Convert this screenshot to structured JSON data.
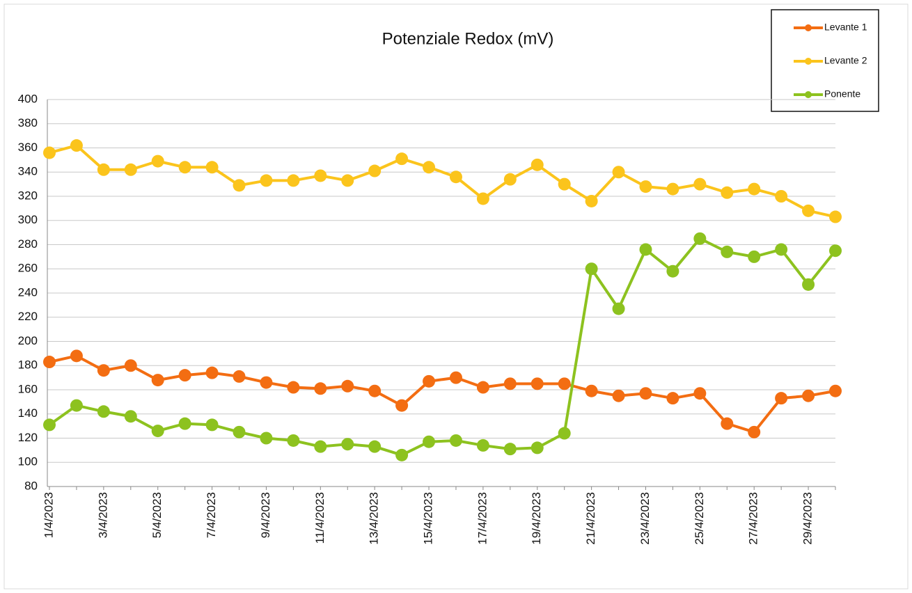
{
  "chart_data": {
    "type": "line",
    "title": "Potenziale Redox  (mV)",
    "categories": [
      "1/4/2023",
      null,
      "3/4/2023",
      null,
      "5/4/2023",
      null,
      "7/4/2023",
      null,
      "9/4/2023",
      null,
      "11/4/2023",
      null,
      "13/4/2023",
      null,
      "15/4/2023",
      null,
      "17/4/2023",
      null,
      "19/4/2023",
      null,
      "21/4/2023",
      null,
      "23/4/2023",
      null,
      "25/4/2023",
      null,
      "27/4/2023",
      null,
      "29/4/2023",
      null
    ],
    "series": [
      {
        "name": "Levante 1",
        "color": "#f36d12",
        "values": [
          183,
          188,
          176,
          180,
          168,
          172,
          174,
          171,
          166,
          162,
          161,
          163,
          159,
          147,
          167,
          170,
          162,
          165,
          165,
          165,
          159,
          155,
          157,
          153,
          157,
          132,
          125,
          153,
          155,
          159
        ]
      },
      {
        "name": "Levante 2",
        "color": "#fbc41c",
        "values": [
          356,
          362,
          342,
          342,
          349,
          344,
          344,
          329,
          333,
          333,
          337,
          333,
          341,
          351,
          344,
          336,
          318,
          334,
          346,
          330,
          316,
          340,
          328,
          326,
          330,
          323,
          326,
          320,
          308,
          303
        ]
      },
      {
        "name": "Ponente",
        "color": "#8dc21f",
        "values": [
          131,
          147,
          142,
          138,
          126,
          132,
          131,
          125,
          120,
          118,
          113,
          115,
          113,
          106,
          117,
          118,
          114,
          111,
          112,
          124,
          260,
          227,
          276,
          258,
          285,
          274,
          270,
          276,
          247,
          275
        ]
      }
    ],
    "ylim": [
      80,
      400
    ],
    "yticks": [
      80,
      100,
      120,
      140,
      160,
      180,
      200,
      220,
      240,
      260,
      280,
      300,
      320,
      340,
      360,
      380,
      400
    ],
    "grid": true,
    "legend": "upper right"
  }
}
